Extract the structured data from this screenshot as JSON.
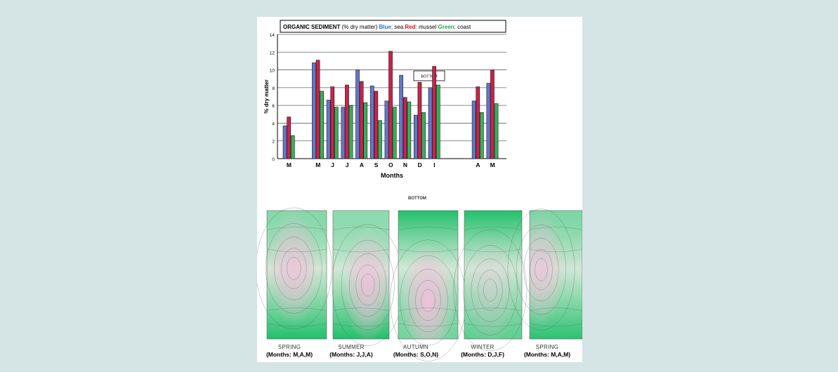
{
  "colors": {
    "page_background": "#d5e4e4",
    "sea": "#6676c8",
    "mussel": "#c8234b",
    "coast": "#35b05a",
    "contour_green": "#22c06c",
    "contour_pink": "#f0c0da"
  },
  "chart_data": {
    "type": "bar",
    "title_parts": [
      {
        "text": "ORGANIC SEDIMENT",
        "color": "#000000",
        "bold": true
      },
      {
        "text": " (% dry matter) ",
        "color": "#000000",
        "bold": false
      },
      {
        "text": "Blue",
        "color": "#2f6fd6",
        "bold": true
      },
      {
        "text": ":  sea   ",
        "color": "#000000",
        "bold": false
      },
      {
        "text": "Red",
        "color": "#c8102e",
        "bold": true
      },
      {
        "text": ":  mussel ",
        "color": "#000000",
        "bold": false
      },
      {
        "text": "Green",
        "color": "#1fa64a",
        "bold": true
      },
      {
        "text": ": coast",
        "color": "#000000",
        "bold": false
      }
    ],
    "annotation": "BOTTOM",
    "xlabel": "Months",
    "ylabel": "% dry matter",
    "ylim": [
      0,
      14
    ],
    "yticks": [
      0,
      2,
      4,
      6,
      8,
      10,
      12,
      14
    ],
    "grid": true,
    "groups": [
      {
        "label": "M",
        "slot": 0
      },
      {
        "label": "M",
        "slot": 2
      },
      {
        "label": "J",
        "slot": 3
      },
      {
        "label": "J",
        "slot": 4
      },
      {
        "label": "A",
        "slot": 5
      },
      {
        "label": "S",
        "slot": 6
      },
      {
        "label": "O",
        "slot": 7
      },
      {
        "label": "N",
        "slot": 8
      },
      {
        "label": "D",
        "slot": 9
      },
      {
        "label": "I",
        "slot": 10
      },
      {
        "label": "A",
        "slot": 13
      },
      {
        "label": "M",
        "slot": 14
      }
    ],
    "series": [
      {
        "name": "sea",
        "color": "#6676c8",
        "values": [
          3.7,
          10.8,
          6.6,
          5.8,
          10.0,
          8.2,
          6.5,
          9.4,
          4.9,
          8.0,
          6.5,
          8.5
        ]
      },
      {
        "name": "mussel",
        "color": "#c8234b",
        "values": [
          4.7,
          11.1,
          8.1,
          8.3,
          8.7,
          7.6,
          12.1,
          6.9,
          8.6,
          10.4,
          8.1,
          10.0
        ]
      },
      {
        "name": "coast",
        "color": "#35b05a",
        "values": [
          2.6,
          7.6,
          5.8,
          6.0,
          6.3,
          4.3,
          5.8,
          6.4,
          5.2,
          8.3,
          5.2,
          6.2
        ]
      }
    ]
  },
  "contour_title": "BOTTOM",
  "panels": [
    {
      "season": "SPRING",
      "months": "(Months: M,A,M)",
      "hot_x": 0.45,
      "hot_y": 0.45,
      "hot_strength": 0.85,
      "green_top": 0.5,
      "green_bottom": 1.0
    },
    {
      "season": "SUMMER",
      "months": "(Months: J,J,A)",
      "hot_x": 0.62,
      "hot_y": 0.58,
      "hot_strength": 0.9,
      "green_top": 0.45,
      "green_bottom": 1.0
    },
    {
      "season": "AUTUMN",
      "months": "(Months: S,O,N)",
      "hot_x": 0.5,
      "hot_y": 0.7,
      "hot_strength": 1.0,
      "green_top": 1.0,
      "green_bottom": 0.6
    },
    {
      "season": "WINTER",
      "months": "(Months: D,J,F)",
      "hot_x": 0.45,
      "hot_y": 0.62,
      "hot_strength": 0.4,
      "green_top": 1.0,
      "green_bottom": 0.7
    },
    {
      "season": "SPRING",
      "months": "(Months: M,A,M)",
      "hot_x": 0.22,
      "hot_y": 0.46,
      "hot_strength": 0.8,
      "green_top": 0.55,
      "green_bottom": 0.95
    }
  ]
}
